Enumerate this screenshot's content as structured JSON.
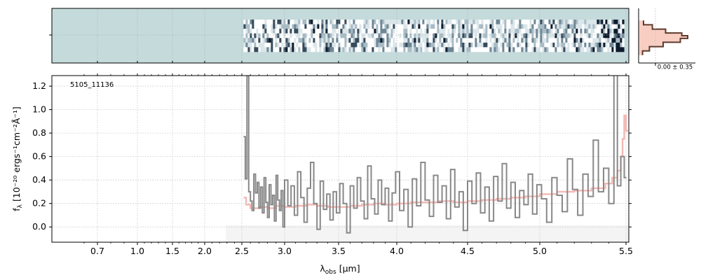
{
  "chart_data": [
    {
      "type": "heatmap",
      "panel": "2d-spectrum",
      "x_range_um": [
        2.52,
        5.5
      ],
      "rows": 7,
      "background_color": "#c5dbdb",
      "colors": [
        "#ffffff",
        "#dbe6ea",
        "#a9bcc6",
        "#6f8796",
        "#364a5b",
        "#0d1a2c"
      ]
    },
    {
      "type": "line",
      "panel": "profile",
      "tick_label": "0.00 ± 0.35",
      "trace_color": "#5e3b2d",
      "fill_color": "#f7c9bc",
      "profile": [
        {
          "y": 0.78,
          "v": 0.1
        },
        {
          "y": 0.7,
          "v": 0.28
        },
        {
          "y": 0.62,
          "v": 0.55
        },
        {
          "y": 0.55,
          "v": 0.88
        },
        {
          "y": 0.5,
          "v": 1.0
        },
        {
          "y": 0.45,
          "v": 0.85
        },
        {
          "y": 0.38,
          "v": 0.5
        },
        {
          "y": 0.3,
          "v": 0.22
        },
        {
          "y": 0.22,
          "v": 0.08
        }
      ]
    },
    {
      "type": "line",
      "panel": "1d-spectrum",
      "label": "5105_11136",
      "xlabel": "λ",
      "xlabel_sub": "obs",
      "xlabel_unit": "[μm]",
      "ylabel": "f",
      "ylabel_sub": "λ",
      "ylabel_unit": "[10⁻²⁰ ergs⁻¹cm⁻²Å⁻¹]",
      "x_ticks": [
        "0.7",
        "1.0",
        "1.5",
        "2.0",
        "2.5",
        "3.0",
        "3.5",
        "4.0",
        "4.5",
        "5.0",
        "5.5"
      ],
      "x_tick_values": [
        0.7,
        1.0,
        1.5,
        2.0,
        2.5,
        3.0,
        3.5,
        4.0,
        4.5,
        5.0,
        5.5
      ],
      "y_ticks": [
        "0.0",
        "0.2",
        "0.4",
        "0.6",
        "0.8",
        "1.0",
        "1.2"
      ],
      "y_tick_values": [
        0.0,
        0.2,
        0.4,
        0.6,
        0.8,
        1.0,
        1.2
      ],
      "ylim": [
        -0.13,
        1.29
      ],
      "grid": true,
      "series": [
        {
          "color": "#888888",
          "points": [
            [
              2.52,
              0.77
            ],
            [
              2.54,
              0.41
            ],
            [
              2.56,
              1.35
            ],
            [
              2.58,
              0.3
            ],
            [
              2.6,
              0.22
            ],
            [
              2.62,
              0.14
            ],
            [
              2.64,
              0.45
            ],
            [
              2.66,
              0.29
            ],
            [
              2.68,
              0.38
            ],
            [
              2.7,
              0.16
            ],
            [
              2.72,
              0.34
            ],
            [
              2.74,
              0.12
            ],
            [
              2.76,
              0.42
            ],
            [
              2.78,
              0.21
            ],
            [
              2.8,
              0.08
            ],
            [
              2.82,
              0.36
            ],
            [
              2.84,
              0.19
            ],
            [
              2.86,
              0.27
            ],
            [
              2.88,
              0.05
            ],
            [
              2.9,
              0.44
            ],
            [
              2.92,
              0.23
            ],
            [
              2.94,
              0.14
            ],
            [
              2.96,
              0.31
            ],
            [
              2.98,
              0.0
            ],
            [
              3.0,
              0.4
            ],
            [
              3.03,
              0.18
            ],
            [
              3.06,
              0.35
            ],
            [
              3.09,
              0.1
            ],
            [
              3.12,
              0.47
            ],
            [
              3.15,
              0.25
            ],
            [
              3.18,
              0.04
            ],
            [
              3.21,
              0.33
            ],
            [
              3.24,
              0.55
            ],
            [
              3.27,
              0.2
            ],
            [
              3.3,
              -0.02
            ],
            [
              3.33,
              0.39
            ],
            [
              3.36,
              0.15
            ],
            [
              3.39,
              0.28
            ],
            [
              3.42,
              0.06
            ],
            [
              3.45,
              0.3
            ],
            [
              3.48,
              0.12
            ],
            [
              3.51,
              0.37
            ],
            [
              3.54,
              0.2
            ],
            [
              3.57,
              -0.05
            ],
            [
              3.6,
              0.35
            ],
            [
              3.63,
              0.16
            ],
            [
              3.66,
              0.42
            ],
            [
              3.69,
              0.22
            ],
            [
              3.72,
              0.07
            ],
            [
              3.75,
              0.52
            ],
            [
              3.78,
              0.24
            ],
            [
              3.81,
              0.11
            ],
            [
              3.84,
              0.4
            ],
            [
              3.87,
              0.19
            ],
            [
              3.9,
              0.33
            ],
            [
              3.93,
              0.05
            ],
            [
              3.96,
              0.29
            ],
            [
              3.99,
              0.47
            ],
            [
              4.02,
              0.14
            ],
            [
              4.05,
              0.32
            ],
            [
              4.08,
              0.0
            ],
            [
              4.11,
              0.41
            ],
            [
              4.14,
              0.18
            ],
            [
              4.17,
              0.55
            ],
            [
              4.2,
              0.23
            ],
            [
              4.23,
              0.09
            ],
            [
              4.26,
              0.44
            ],
            [
              4.29,
              0.21
            ],
            [
              4.32,
              0.35
            ],
            [
              4.35,
              0.07
            ],
            [
              4.38,
              0.49
            ],
            [
              4.41,
              0.17
            ],
            [
              4.44,
              0.3
            ],
            [
              4.47,
              -0.03
            ],
            [
              4.5,
              0.39
            ],
            [
              4.53,
              0.2
            ],
            [
              4.56,
              0.46
            ],
            [
              4.59,
              0.12
            ],
            [
              4.62,
              0.34
            ],
            [
              4.65,
              0.05
            ],
            [
              4.68,
              0.43
            ],
            [
              4.71,
              0.22
            ],
            [
              4.74,
              0.54
            ],
            [
              4.77,
              0.16
            ],
            [
              4.8,
              0.38
            ],
            [
              4.83,
              0.08
            ],
            [
              4.86,
              0.31
            ],
            [
              4.89,
              0.19
            ],
            [
              4.92,
              0.45
            ],
            [
              4.95,
              0.11
            ],
            [
              4.98,
              0.36
            ],
            [
              5.01,
              0.24
            ],
            [
              5.04,
              0.04
            ],
            [
              5.07,
              0.42
            ],
            [
              5.1,
              0.27
            ],
            [
              5.13,
              0.13
            ],
            [
              5.16,
              0.58
            ],
            [
              5.19,
              0.32
            ],
            [
              5.22,
              0.1
            ],
            [
              5.25,
              0.45
            ],
            [
              5.28,
              0.26
            ],
            [
              5.31,
              0.74
            ],
            [
              5.34,
              0.3
            ],
            [
              5.37,
              0.5
            ],
            [
              5.4,
              0.2
            ],
            [
              5.43,
              1.4
            ],
            [
              5.45,
              0.35
            ],
            [
              5.47,
              0.6
            ],
            [
              5.49,
              0.42
            ]
          ]
        },
        {
          "color": "#f4b8b4",
          "points": [
            [
              2.52,
              0.25
            ],
            [
              2.55,
              0.19
            ],
            [
              2.6,
              0.16
            ],
            [
              2.7,
              0.17
            ],
            [
              2.8,
              0.16
            ],
            [
              2.9,
              0.18
            ],
            [
              3.0,
              0.17
            ],
            [
              3.1,
              0.18
            ],
            [
              3.2,
              0.19
            ],
            [
              3.3,
              0.18
            ],
            [
              3.4,
              0.17
            ],
            [
              3.5,
              0.17
            ],
            [
              3.6,
              0.18
            ],
            [
              3.7,
              0.19
            ],
            [
              3.8,
              0.2
            ],
            [
              3.9,
              0.19
            ],
            [
              4.0,
              0.2
            ],
            [
              4.1,
              0.21
            ],
            [
              4.2,
              0.21
            ],
            [
              4.3,
              0.22
            ],
            [
              4.4,
              0.21
            ],
            [
              4.5,
              0.22
            ],
            [
              4.6,
              0.23
            ],
            [
              4.7,
              0.24
            ],
            [
              4.8,
              0.25
            ],
            [
              4.9,
              0.26
            ],
            [
              5.0,
              0.28
            ],
            [
              5.1,
              0.3
            ],
            [
              5.2,
              0.31
            ],
            [
              5.3,
              0.33
            ],
            [
              5.38,
              0.37
            ],
            [
              5.42,
              0.42
            ],
            [
              5.45,
              0.48
            ],
            [
              5.47,
              0.6
            ],
            [
              5.48,
              0.75
            ],
            [
              5.49,
              0.95
            ],
            [
              5.5,
              0.82
            ]
          ]
        }
      ]
    }
  ]
}
